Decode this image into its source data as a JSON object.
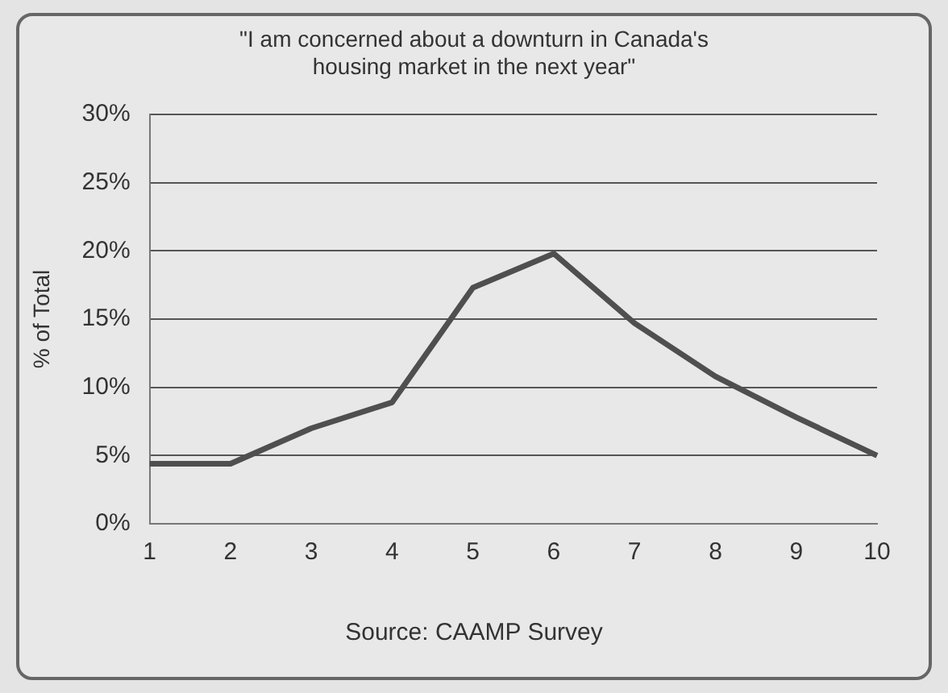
{
  "chart_data": {
    "type": "line",
    "title": "\"I am concerned about a downturn in Canada's housing market in the next year\"",
    "ylabel": "% of Total",
    "categories": [
      "1",
      "2",
      "3",
      "4",
      "5",
      "6",
      "7",
      "8",
      "9",
      "10"
    ],
    "series": [
      {
        "color": "#4f4f4f",
        "values": [
          4.4,
          4.4,
          7.0,
          8.9,
          17.3,
          19.8,
          14.7,
          10.8,
          7.8,
          5.0
        ]
      }
    ],
    "ylim": [
      0,
      30
    ],
    "yticks": [
      {
        "value": 0,
        "label": "0%"
      },
      {
        "value": 5,
        "label": "5%"
      },
      {
        "value": 10,
        "label": "10%"
      },
      {
        "value": 15,
        "label": "15%"
      },
      {
        "value": 20,
        "label": "20%"
      },
      {
        "value": 25,
        "label": "25%"
      },
      {
        "value": 30,
        "label": "30%"
      }
    ],
    "grid": "y",
    "legend": false,
    "marker": "none",
    "line_style": "solid",
    "annotations": [
      "Source: CAAMP Survey"
    ]
  }
}
